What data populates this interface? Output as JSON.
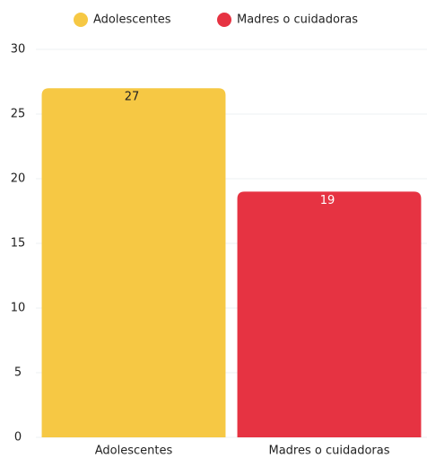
{
  "chart_data": {
    "type": "bar",
    "categories": [
      "Adolescentes",
      "Madres o cuidadoras"
    ],
    "values": [
      27,
      19
    ],
    "colors": [
      "#f6c844",
      "#e63342"
    ],
    "ylim": [
      0,
      30
    ],
    "yticks": [
      0,
      5,
      10,
      15,
      20,
      25,
      30
    ],
    "grid": true,
    "legend": "top"
  }
}
